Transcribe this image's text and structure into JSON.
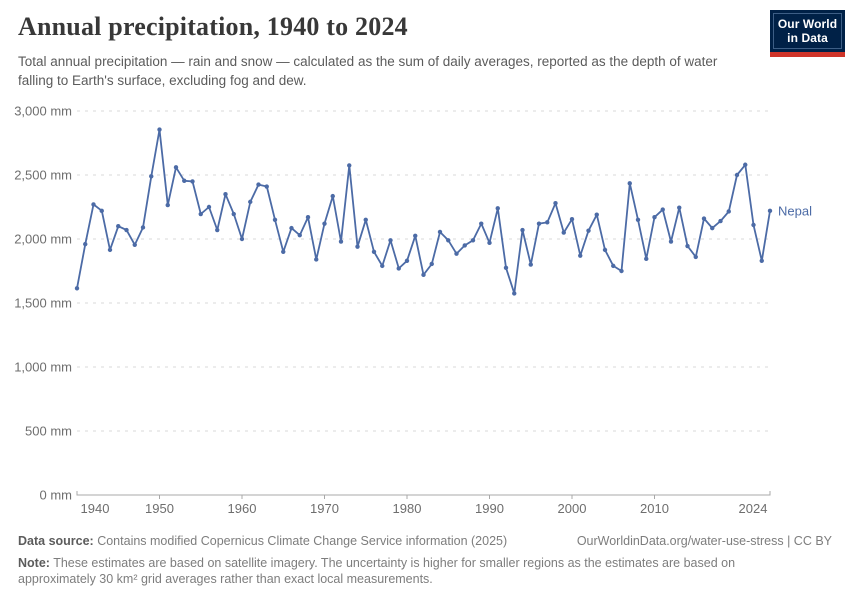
{
  "header": {
    "title": "Annual precipitation, 1940 to 2024",
    "subtitle": "Total annual precipitation — rain and snow — calculated as the sum of daily averages, reported as the depth of water falling to Earth's surface, excluding fog and dew."
  },
  "logo": {
    "line1": "Our World",
    "line2": "in Data",
    "bg_color": "#002147",
    "bar_color": "#cf3429"
  },
  "chart_data": {
    "type": "line",
    "title": "Annual precipitation, 1940 to 2024",
    "unit": "mm",
    "xlim": [
      1940,
      2024
    ],
    "ylim": [
      0,
      3000
    ],
    "y_ticks": [
      0,
      500,
      1000,
      1500,
      2000,
      2500,
      3000
    ],
    "x_ticks": [
      1940,
      1950,
      1960,
      1970,
      1980,
      1990,
      2000,
      2010,
      2024
    ],
    "grid": "horizontal dashed",
    "legend": "end-of-line label",
    "series": [
      {
        "name": "Nepal",
        "color": "#4C6BA6",
        "x": [
          1940,
          1941,
          1942,
          1943,
          1944,
          1945,
          1946,
          1947,
          1948,
          1949,
          1950,
          1951,
          1952,
          1953,
          1954,
          1955,
          1956,
          1957,
          1958,
          1959,
          1960,
          1961,
          1962,
          1963,
          1964,
          1965,
          1966,
          1967,
          1968,
          1969,
          1970,
          1971,
          1972,
          1973,
          1974,
          1975,
          1976,
          1977,
          1978,
          1979,
          1980,
          1981,
          1982,
          1983,
          1984,
          1985,
          1986,
          1987,
          1988,
          1989,
          1990,
          1991,
          1992,
          1993,
          1994,
          1995,
          1996,
          1997,
          1998,
          1999,
          2000,
          2001,
          2002,
          2003,
          2004,
          2005,
          2006,
          2007,
          2008,
          2009,
          2010,
          2011,
          2012,
          2013,
          2014,
          2015,
          2016,
          2017,
          2018,
          2019,
          2020,
          2021,
          2022,
          2023,
          2024
        ],
        "values": [
          1615,
          1960,
          2270,
          2220,
          1915,
          2100,
          2070,
          1955,
          2090,
          2490,
          2855,
          2265,
          2560,
          2455,
          2450,
          2195,
          2250,
          2070,
          2350,
          2195,
          2000,
          2290,
          2425,
          2410,
          2150,
          1900,
          2085,
          2030,
          2170,
          1840,
          2120,
          2335,
          1980,
          2575,
          1940,
          2150,
          1900,
          1790,
          1990,
          1770,
          1830,
          2025,
          1720,
          1805,
          2055,
          1990,
          1885,
          1950,
          1990,
          2120,
          1970,
          2240,
          1775,
          1575,
          2070,
          1800,
          2120,
          2130,
          2280,
          2050,
          2155,
          1870,
          2065,
          2190,
          1915,
          1790,
          1750,
          2435,
          2150,
          1845,
          2170,
          2230,
          1980,
          2245,
          1945,
          1860,
          2160,
          2085,
          2140,
          2215,
          2500,
          2580,
          2110,
          1830,
          2220
        ]
      }
    ]
  },
  "footer": {
    "datasource_label": "Data source:",
    "datasource_text": " Contains modified Copernicus Climate Change Service information (2025)",
    "link_text": "OurWorldinData.org/water-use-stress | CC BY",
    "note_label": "Note:",
    "note_text": " These estimates are based on satellite imagery. The uncertainty is higher for smaller regions as the estimates are based on approximately 30 km² grid averages rather than exact local measurements."
  }
}
